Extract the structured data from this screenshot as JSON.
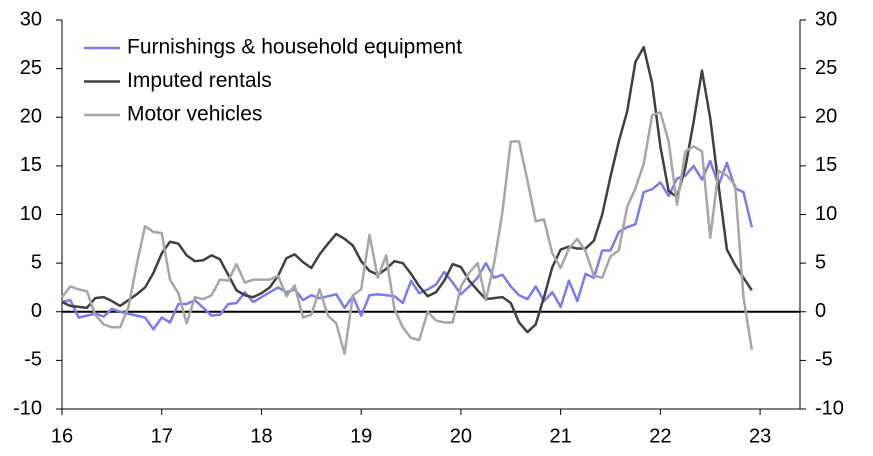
{
  "chart_data": {
    "type": "line",
    "x": [
      16,
      16.083,
      16.167,
      16.25,
      16.333,
      16.417,
      16.5,
      16.583,
      16.667,
      16.75,
      16.833,
      16.917,
      17,
      17.083,
      17.167,
      17.25,
      17.333,
      17.417,
      17.5,
      17.583,
      17.667,
      17.75,
      17.833,
      17.917,
      18,
      18.083,
      18.167,
      18.25,
      18.333,
      18.417,
      18.5,
      18.583,
      18.667,
      18.75,
      18.833,
      18.917,
      19,
      19.083,
      19.167,
      19.25,
      19.333,
      19.417,
      19.5,
      19.583,
      19.667,
      19.75,
      19.833,
      19.917,
      20,
      20.083,
      20.167,
      20.25,
      20.333,
      20.417,
      20.5,
      20.583,
      20.667,
      20.75,
      20.833,
      20.917,
      21,
      21.083,
      21.167,
      21.25,
      21.333,
      21.417,
      21.5,
      21.583,
      21.667,
      21.75,
      21.833,
      21.917,
      22,
      22.083,
      22.167,
      22.25,
      22.333,
      22.417,
      22.5,
      22.583,
      22.667,
      22.75,
      22.833,
      22.917
    ],
    "series": [
      {
        "name": "Furnishings & household equipment",
        "color": "#7b7bef",
        "values": [
          1,
          1.2,
          -0.6,
          -0.4,
          -0.2,
          -0.5,
          0.3,
          0,
          -0.2,
          -0.4,
          -0.6,
          -1.8,
          -0.6,
          -1.1,
          0.8,
          0.8,
          1.2,
          0.4,
          -0.4,
          -0.3,
          0.8,
          0.9,
          2,
          1,
          1.5,
          2,
          2.5,
          2,
          2.3,
          1.2,
          1.7,
          1.4,
          1.6,
          1.8,
          0.4,
          1.6,
          -0.4,
          1.7,
          1.8,
          1.7,
          1.6,
          0.9,
          3.2,
          1.9,
          2.3,
          2.8,
          4.1,
          3,
          1.8,
          2.6,
          3.5,
          5,
          3.5,
          3.8,
          2.6,
          1.7,
          1.3,
          2.6,
          1.1,
          2,
          0.5,
          3.2,
          1.1,
          3.9,
          3.5,
          6.3,
          6.3,
          8.2,
          8.7,
          9,
          12.3,
          12.6,
          13.3,
          11.9,
          13.7,
          14,
          15,
          13.6,
          15.5,
          13,
          15.3,
          12.7,
          12.3,
          8.7
        ]
      },
      {
        "name": "Imputed rentals",
        "color": "#404040",
        "values": [
          1,
          0.6,
          0.5,
          0.4,
          1.4,
          1.5,
          1.1,
          0.6,
          1.2,
          1.8,
          2.5,
          4,
          6,
          7.2,
          7,
          5.8,
          5.2,
          5.3,
          5.8,
          5.4,
          3.8,
          2.2,
          1.7,
          1.5,
          1.9,
          2.5,
          3.7,
          5.5,
          5.9,
          5.1,
          4.5,
          5.9,
          7,
          8,
          7.5,
          6.8,
          5.2,
          4.2,
          3.8,
          4.4,
          5.2,
          5,
          3.9,
          2.6,
          1.6,
          2,
          3.2,
          4.9,
          4.6,
          3.2,
          2.2,
          1.3,
          1.4,
          1.5,
          0.9,
          -1.1,
          -2.1,
          -1.3,
          1.5,
          4.6,
          6.4,
          6.7,
          6.5,
          6.5,
          7.3,
          10,
          13.9,
          17.5,
          20.6,
          25.7,
          27.2,
          23.5,
          17,
          12.4,
          11.8,
          14.8,
          19.5,
          24.8,
          19.9,
          13,
          6.4,
          4.8,
          3.5,
          2.2
        ]
      },
      {
        "name": "Motor vehicles",
        "color": "#a6a6a6",
        "values": [
          1.5,
          2.6,
          2.3,
          2.1,
          -0.3,
          -1.3,
          -1.6,
          -1.6,
          0.5,
          4.9,
          8.8,
          8.2,
          8.1,
          3.3,
          1.9,
          -1.2,
          1.5,
          1.3,
          1.7,
          3.3,
          3.2,
          4.9,
          3,
          3.3,
          3.3,
          3.3,
          3.7,
          1.6,
          2.7,
          -0.6,
          -0.3,
          2.3,
          -0.4,
          -1.2,
          -4.3,
          1.7,
          2.3,
          7.9,
          3.5,
          5.8,
          0.3,
          -1.6,
          -2.7,
          -2.9,
          0,
          -0.9,
          -1.1,
          -1.1,
          2.6,
          4,
          5,
          1.2,
          5,
          10.3,
          17.5,
          17.5,
          13.5,
          9.3,
          9.5,
          6,
          4.5,
          6.5,
          7.5,
          6.2,
          3.7,
          3.5,
          5.7,
          6.3,
          10.8,
          12.7,
          15.2,
          20.2,
          20.5,
          17.5,
          11,
          16.5,
          17,
          16.5,
          7.6,
          14.5,
          14,
          13,
          1.5,
          -3.9
        ]
      }
    ],
    "xlim": [
      16,
      23.4
    ],
    "xticks": [
      16,
      17,
      18,
      19,
      20,
      21,
      22,
      23
    ],
    "ylim": [
      -10,
      30
    ],
    "yticks": [
      -10,
      -5,
      0,
      5,
      10,
      15,
      20,
      25,
      30
    ],
    "y2lim": [
      -10,
      30
    ],
    "y2ticks": [
      -10,
      -5,
      0,
      5,
      10,
      15,
      20,
      25,
      30
    ],
    "legend": "upper-left"
  }
}
